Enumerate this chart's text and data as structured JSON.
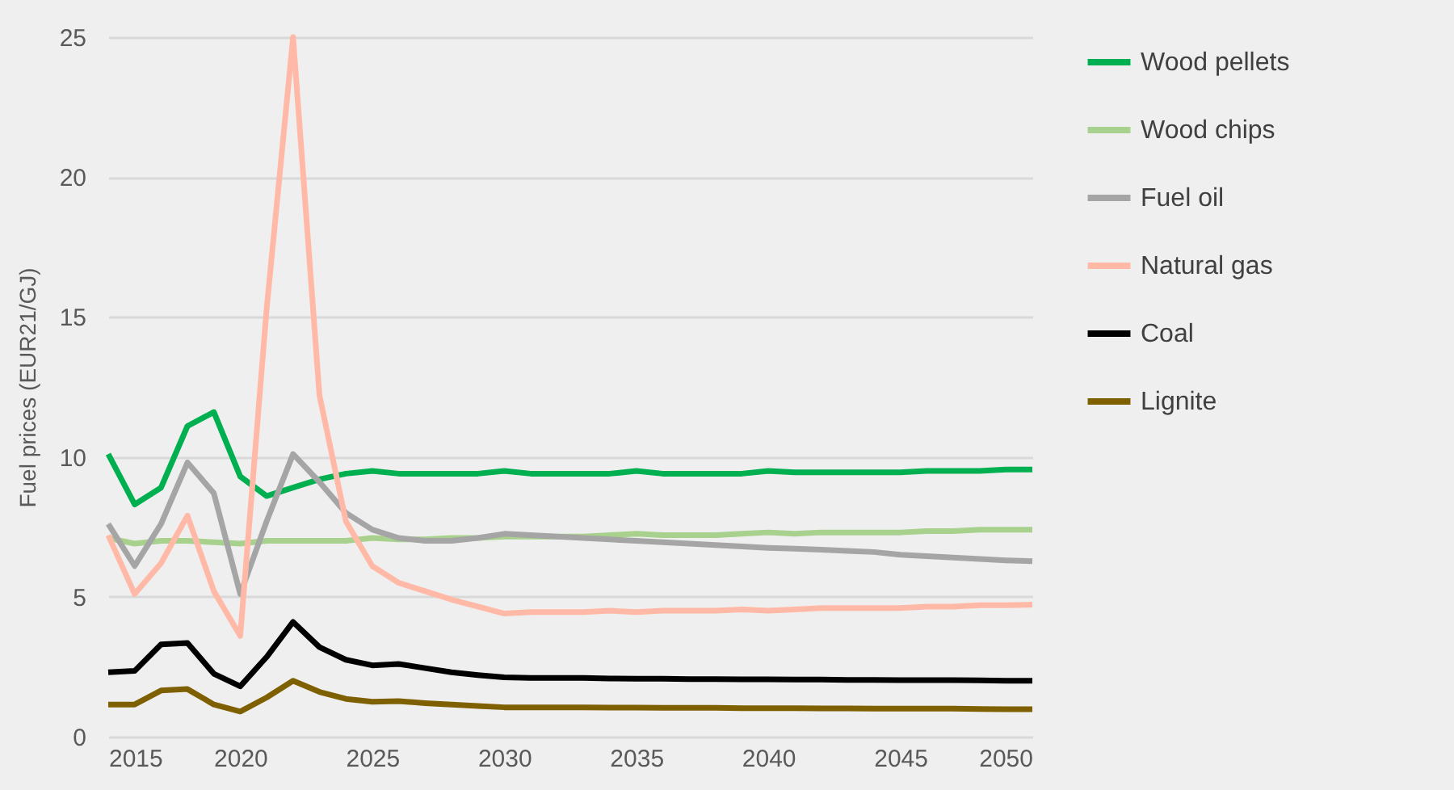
{
  "chart_data": {
    "type": "line",
    "ylabel": "Fuel prices (EUR21/GJ)",
    "x": [
      2015,
      2016,
      2017,
      2018,
      2019,
      2020,
      2021,
      2022,
      2023,
      2024,
      2025,
      2026,
      2027,
      2028,
      2029,
      2030,
      2031,
      2032,
      2033,
      2034,
      2035,
      2036,
      2037,
      2038,
      2039,
      2040,
      2041,
      2042,
      2043,
      2044,
      2045,
      2046,
      2047,
      2048,
      2049,
      2050
    ],
    "xlim": [
      2015,
      2050
    ],
    "xticks": [
      2015,
      2020,
      2025,
      2030,
      2035,
      2040,
      2045,
      2050
    ],
    "ylim": [
      0,
      25
    ],
    "yticks": [
      0,
      5,
      10,
      15,
      20,
      25
    ],
    "grid": "y",
    "legend": "right",
    "marker": "none",
    "line_style": "solid",
    "series": [
      {
        "name": "Wood pellets",
        "color": "#00b050",
        "values": [
          10.1,
          8.3,
          8.9,
          11.1,
          11.6,
          9.3,
          8.6,
          8.9,
          9.2,
          9.4,
          9.5,
          9.4,
          9.4,
          9.4,
          9.4,
          9.5,
          9.4,
          9.4,
          9.4,
          9.4,
          9.5,
          9.4,
          9.4,
          9.4,
          9.4,
          9.5,
          9.45,
          9.45,
          9.45,
          9.45,
          9.45,
          9.5,
          9.5,
          9.5,
          9.55,
          9.55
        ]
      },
      {
        "name": "Wood chips",
        "color": "#a9d18e",
        "values": [
          7.1,
          6.9,
          7.0,
          7.0,
          6.95,
          6.9,
          7.0,
          7.0,
          7.0,
          7.0,
          7.1,
          7.05,
          7.05,
          7.1,
          7.1,
          7.15,
          7.15,
          7.15,
          7.15,
          7.2,
          7.25,
          7.2,
          7.2,
          7.2,
          7.25,
          7.3,
          7.25,
          7.3,
          7.3,
          7.3,
          7.3,
          7.35,
          7.35,
          7.4,
          7.4,
          7.4
        ]
      },
      {
        "name": "Fuel oil",
        "color": "#a5a5a5",
        "values": [
          7.6,
          6.1,
          7.6,
          9.8,
          8.7,
          5.1,
          7.7,
          10.1,
          9.1,
          8.0,
          7.4,
          7.1,
          7.0,
          7.0,
          7.1,
          7.25,
          7.2,
          7.15,
          7.1,
          7.05,
          7.0,
          6.95,
          6.9,
          6.85,
          6.8,
          6.75,
          6.72,
          6.68,
          6.64,
          6.6,
          6.5,
          6.45,
          6.4,
          6.35,
          6.3,
          6.27
        ]
      },
      {
        "name": "Natural gas",
        "color": "#ffb9a6",
        "values": [
          7.2,
          5.1,
          6.2,
          7.9,
          5.2,
          3.6,
          15.3,
          25,
          12.2,
          7.7,
          6.1,
          5.5,
          5.2,
          4.9,
          4.65,
          4.4,
          4.45,
          4.45,
          4.45,
          4.5,
          4.45,
          4.5,
          4.5,
          4.5,
          4.55,
          4.5,
          4.55,
          4.6,
          4.6,
          4.6,
          4.6,
          4.65,
          4.65,
          4.7,
          4.7,
          4.72
        ]
      },
      {
        "name": "Coal",
        "color": "#000000",
        "values": [
          2.3,
          2.35,
          3.3,
          3.35,
          2.25,
          1.8,
          2.85,
          4.1,
          3.2,
          2.75,
          2.55,
          2.6,
          2.45,
          2.3,
          2.2,
          2.12,
          2.1,
          2.1,
          2.1,
          2.08,
          2.07,
          2.07,
          2.06,
          2.06,
          2.05,
          2.05,
          2.04,
          2.04,
          2.03,
          2.03,
          2.02,
          2.02,
          2.02,
          2.01,
          2.0,
          2.0
        ]
      },
      {
        "name": "Lignite",
        "color": "#7f6000",
        "values": [
          1.15,
          1.15,
          1.65,
          1.7,
          1.15,
          0.9,
          1.4,
          2.0,
          1.6,
          1.35,
          1.25,
          1.27,
          1.2,
          1.15,
          1.1,
          1.05,
          1.05,
          1.05,
          1.05,
          1.04,
          1.04,
          1.03,
          1.03,
          1.03,
          1.02,
          1.02,
          1.02,
          1.01,
          1.01,
          1.0,
          1.0,
          1.0,
          1.0,
          0.99,
          0.98,
          0.98
        ]
      }
    ]
  }
}
